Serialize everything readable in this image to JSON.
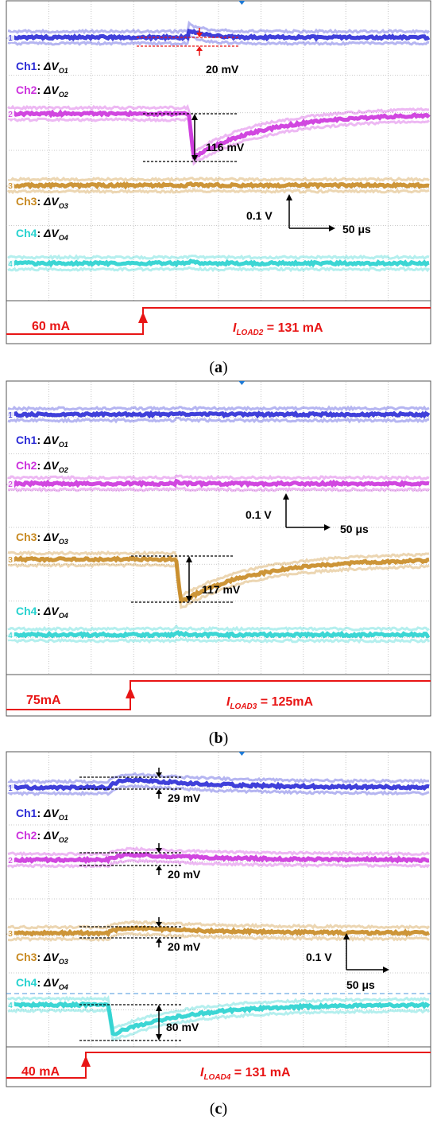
{
  "colors": {
    "ch1": "#2b2bd6",
    "ch2": "#cc33dd",
    "ch3": "#c88a22",
    "ch4": "#27d2cf",
    "load": "#e81515",
    "grid": "#b8b8b8",
    "annotation": "#000000",
    "marker": "#1e7ad6"
  },
  "panels": [
    {
      "caption_open": "(",
      "caption_letter": "a",
      "caption_close": ")",
      "channel_labels": [
        "Ch1",
        "Ch2",
        "Ch3",
        "Ch4"
      ],
      "channel_symbols": [
        "O1",
        "O2",
        "O3",
        "O4"
      ],
      "channel_numbers": [
        "1",
        "2",
        "3",
        "4"
      ],
      "scale": {
        "v_label": "0.1 V",
        "t_label": "50 μs"
      },
      "annotations": [
        "20 mV",
        "116 mV"
      ],
      "load_low": "60 mA",
      "load_high_name": "I",
      "load_high_sub": "LOAD2",
      "load_high_value": " = 131 mA"
    },
    {
      "caption_open": "(",
      "caption_letter": "b",
      "caption_close": ")",
      "channel_labels": [
        "Ch1",
        "Ch2",
        "Ch3",
        "Ch4"
      ],
      "channel_symbols": [
        "O1",
        "O2",
        "O3",
        "O4"
      ],
      "channel_numbers": [
        "1",
        "2",
        "3",
        "4"
      ],
      "scale": {
        "v_label": "0.1 V",
        "t_label": "50 μs"
      },
      "annotations": [
        "117 mV"
      ],
      "load_low": "75mA",
      "load_high_name": "I",
      "load_high_sub": "LOAD3",
      "load_high_value": " = 125mA"
    },
    {
      "caption_open": "(",
      "caption_letter": "c",
      "caption_close": ")",
      "channel_labels": [
        "Ch1",
        "Ch2",
        "Ch3",
        "Ch4"
      ],
      "channel_symbols": [
        "O1",
        "O2",
        "O3",
        "O4"
      ],
      "channel_numbers": [
        "1",
        "2",
        "3",
        "4"
      ],
      "scale": {
        "v_label": "0.1 V",
        "t_label": "50 μs"
      },
      "annotations": [
        "29 mV",
        "20 mV",
        "20 mV",
        "80 mV"
      ],
      "load_low": "40 mA",
      "load_high_name": "I",
      "load_high_sub": "LOAD4",
      "load_high_value": " = 131 mA"
    }
  ],
  "chart_data": [
    {
      "type": "line",
      "scale": {
        "volts_per_div": 0.1,
        "time_per_div_us": 50
      },
      "load_step_mA": [
        60,
        131
      ],
      "step_time_div": 4.3,
      "series": [
        {
          "name": "Ch1: ΔVO1",
          "baseline_div": 1.0,
          "deviation_mV": 20,
          "shape": "overshoot-small"
        },
        {
          "name": "Ch2: ΔVO2",
          "baseline_div": 3.1,
          "deviation_mV": -116,
          "shape": "undershoot-recovery"
        },
        {
          "name": "Ch3: ΔVO3",
          "baseline_div": 5.1,
          "deviation_mV": 0,
          "shape": "flat"
        },
        {
          "name": "Ch4: ΔVO4",
          "baseline_div": 7.1,
          "deviation_mV": 0,
          "shape": "flat"
        }
      ]
    },
    {
      "type": "line",
      "scale": {
        "volts_per_div": 0.1,
        "time_per_div_us": 50
      },
      "load_step_mA": [
        75,
        125
      ],
      "step_time_div": 4.0,
      "series": [
        {
          "name": "Ch1: ΔVO1",
          "baseline_div": 1.0,
          "deviation_mV": 0,
          "shape": "flat"
        },
        {
          "name": "Ch2: ΔVO2",
          "baseline_div": 3.0,
          "deviation_mV": 0,
          "shape": "flat"
        },
        {
          "name": "Ch3: ΔVO3",
          "baseline_div": 5.1,
          "deviation_mV": -117,
          "shape": "undershoot-recovery"
        },
        {
          "name": "Ch4: ΔVO4",
          "baseline_div": 7.0,
          "deviation_mV": 0,
          "shape": "flat"
        }
      ]
    },
    {
      "type": "line",
      "scale": {
        "volts_per_div": 0.1,
        "time_per_div_us": 50
      },
      "load_step_mA": [
        40,
        131
      ],
      "step_time_div": 2.4,
      "series": [
        {
          "name": "Ch1: ΔVO1",
          "baseline_div": 0.8,
          "deviation_mV": 29,
          "shape": "overshoot-recovery"
        },
        {
          "name": "Ch2: ΔVO2",
          "baseline_div": 2.8,
          "deviation_mV": 20,
          "shape": "overshoot-recovery"
        },
        {
          "name": "Ch3: ΔVO3",
          "baseline_div": 4.7,
          "deviation_mV": 20,
          "shape": "overshoot-recovery"
        },
        {
          "name": "Ch4: ΔVO4",
          "baseline_div": 6.6,
          "deviation_mV": -80,
          "shape": "undershoot-recovery"
        }
      ]
    }
  ]
}
